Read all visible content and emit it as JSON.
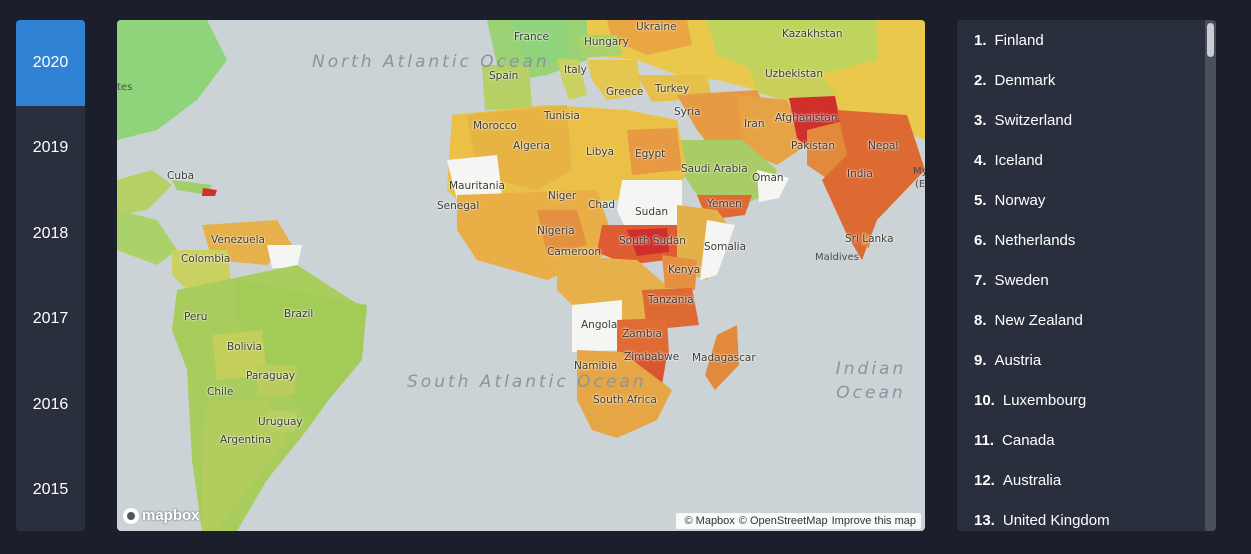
{
  "years": [
    {
      "label": "2020",
      "active": true
    },
    {
      "label": "2019",
      "active": false
    },
    {
      "label": "2018",
      "active": false
    },
    {
      "label": "2017",
      "active": false
    },
    {
      "label": "2016",
      "active": false
    },
    {
      "label": "2015",
      "active": false
    }
  ],
  "map": {
    "oceans": {
      "north_atlantic": "North Atlantic Ocean",
      "south_atlantic": "South Atlantic Ocean",
      "indian": "Indian Ocean"
    },
    "countries": {
      "ukraine": "Ukraine",
      "kazakhstan": "Kazakhstan",
      "france": "France",
      "hungary": "Hungary",
      "spain": "Spain",
      "italy": "Italy",
      "greece": "Greece",
      "turkey": "Turkey",
      "uzbekistan": "Uzbekistan",
      "syria": "Syria",
      "afghanistan": "Afghanistan",
      "iran": "Iran",
      "tunisia": "Tunisia",
      "morocco": "Morocco",
      "algeria": "Algeria",
      "libya": "Libya",
      "egypt": "Egypt",
      "pakistan": "Pakistan",
      "nepal": "Nepal",
      "saudi_arabia": "Saudi Arabia",
      "oman": "Oman",
      "india": "India",
      "cuba": "Cuba",
      "mauritania": "Mauritania",
      "niger": "Niger",
      "senegal": "Senegal",
      "chad": "Chad",
      "sudan": "Sudan",
      "yemen": "Yemen",
      "venezuela": "Venezuela",
      "nigeria": "Nigeria",
      "south_sudan": "South Sudan",
      "somalia": "Somalia",
      "sri_lanka": "Sri Lanka",
      "colombia": "Colombia",
      "cameroon": "Cameroon",
      "kenya": "Kenya",
      "brazil": "Brazil",
      "tanzania": "Tanzania",
      "peru": "Peru",
      "angola": "Angola",
      "zambia": "Zambia",
      "bolivia": "Bolivia",
      "zimbabwe": "Zimbabwe",
      "madagascar": "Madagascar",
      "paraguay": "Paraguay",
      "namibia": "Namibia",
      "chile": "Chile",
      "south_africa": "South Africa",
      "uruguay": "Uruguay",
      "argentina": "Argentina",
      "maldives": "Maldives",
      "tes": "tes",
      "my": "My",
      "e": "(E"
    },
    "logo_text": "mapbox",
    "attribution": {
      "mapbox": "© Mapbox",
      "osm": "© OpenStreetMap",
      "improve": "Improve this map"
    }
  },
  "ranking": [
    {
      "rank": "1.",
      "country": "Finland"
    },
    {
      "rank": "2.",
      "country": "Denmark"
    },
    {
      "rank": "3.",
      "country": "Switzerland"
    },
    {
      "rank": "4.",
      "country": "Iceland"
    },
    {
      "rank": "5.",
      "country": "Norway"
    },
    {
      "rank": "6.",
      "country": "Netherlands"
    },
    {
      "rank": "7.",
      "country": "Sweden"
    },
    {
      "rank": "8.",
      "country": "New Zealand"
    },
    {
      "rank": "9.",
      "country": "Austria"
    },
    {
      "rank": "10.",
      "country": "Luxembourg"
    },
    {
      "rank": "11.",
      "country": "Canada"
    },
    {
      "rank": "12.",
      "country": "Australia"
    },
    {
      "rank": "13.",
      "country": "United Kingdom"
    }
  ],
  "colors": {
    "background": "#1b1f2b",
    "panel": "#2a2f3d",
    "active_year": "#2f82d4",
    "ocean": "#ccd3d6",
    "happy_high": "#8dd37a",
    "happy_mid": "#eac14a",
    "happy_low": "#e0672f",
    "happy_lowest": "#c9302c",
    "no_data": "#f6f6f4"
  }
}
